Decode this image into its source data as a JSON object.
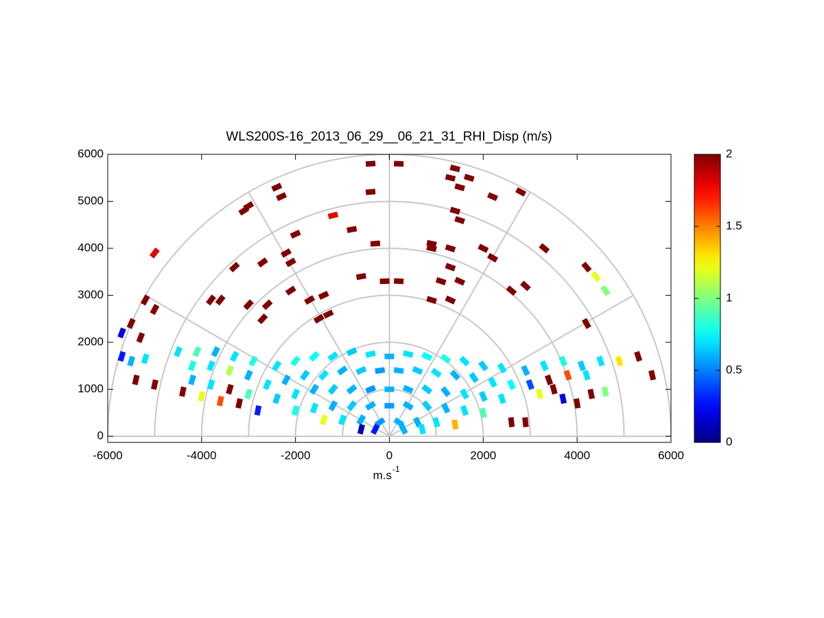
{
  "chart_data": {
    "type": "polar_heatmap",
    "title": "WLS200S-16_2013_06_29__06_21_31_RHI_Disp (m/s)",
    "xlabel": "m.s",
    "xlabel_sup": "-1",
    "xlim": [
      -6000,
      6000
    ],
    "ylim": [
      -130,
      6000
    ],
    "xticks": [
      -6000,
      -4000,
      -2000,
      0,
      2000,
      4000,
      6000
    ],
    "yticks": [
      0,
      1000,
      2000,
      3000,
      4000,
      5000,
      6000
    ],
    "rings": [
      1000,
      2000,
      3000,
      4000,
      5000,
      6000
    ],
    "rays": [
      0,
      30,
      60,
      90,
      120,
      150,
      180
    ],
    "colormap": "jet",
    "clim": [
      0,
      2
    ],
    "cticks": [
      0,
      0.5,
      1,
      1.5,
      2
    ],
    "cells": [
      {
        "x": -2400,
        "y": 1500,
        "value": 0.7
      },
      {
        "x": -2000,
        "y": 1600,
        "value": 0.8
      },
      {
        "x": -1600,
        "y": 1700,
        "value": 0.75
      },
      {
        "x": -1200,
        "y": 1700,
        "value": 0.7
      },
      {
        "x": -800,
        "y": 1800,
        "value": 0.65
      },
      {
        "x": -400,
        "y": 1750,
        "value": 0.7
      },
      {
        "x": 0,
        "y": 1700,
        "value": 0.6
      },
      {
        "x": 400,
        "y": 1750,
        "value": 0.7
      },
      {
        "x": 800,
        "y": 1700,
        "value": 0.75
      },
      {
        "x": 1200,
        "y": 1650,
        "value": 0.8
      },
      {
        "x": 1600,
        "y": 1600,
        "value": 0.7
      },
      {
        "x": 2000,
        "y": 1500,
        "value": 0.65
      },
      {
        "x": 2400,
        "y": 1450,
        "value": 0.7
      },
      {
        "x": -2600,
        "y": 1100,
        "value": 0.7
      },
      {
        "x": -2200,
        "y": 1200,
        "value": 0.6
      },
      {
        "x": -1800,
        "y": 1300,
        "value": 0.65
      },
      {
        "x": -1400,
        "y": 1300,
        "value": 0.7
      },
      {
        "x": -1000,
        "y": 1400,
        "value": 0.6
      },
      {
        "x": -600,
        "y": 1400,
        "value": 0.65
      },
      {
        "x": -200,
        "y": 1400,
        "value": 0.55
      },
      {
        "x": 200,
        "y": 1400,
        "value": 0.6
      },
      {
        "x": 600,
        "y": 1400,
        "value": 0.65
      },
      {
        "x": 1000,
        "y": 1350,
        "value": 0.7
      },
      {
        "x": 1400,
        "y": 1300,
        "value": 0.6
      },
      {
        "x": 1800,
        "y": 1250,
        "value": 0.65
      },
      {
        "x": 2200,
        "y": 1150,
        "value": 0.7
      },
      {
        "x": 2600,
        "y": 1100,
        "value": 0.75
      },
      {
        "x": -2400,
        "y": 800,
        "value": 0.65
      },
      {
        "x": -2000,
        "y": 900,
        "value": 0.7
      },
      {
        "x": -1600,
        "y": 1000,
        "value": 0.6
      },
      {
        "x": -1200,
        "y": 1000,
        "value": 0.65
      },
      {
        "x": -800,
        "y": 1000,
        "value": 0.6
      },
      {
        "x": -400,
        "y": 1000,
        "value": 0.55
      },
      {
        "x": 0,
        "y": 1000,
        "value": 0.6
      },
      {
        "x": 400,
        "y": 1000,
        "value": 0.6
      },
      {
        "x": 800,
        "y": 1000,
        "value": 0.65
      },
      {
        "x": 1200,
        "y": 950,
        "value": 0.6
      },
      {
        "x": 1600,
        "y": 900,
        "value": 0.7
      },
      {
        "x": 2000,
        "y": 850,
        "value": 0.65
      },
      {
        "x": 2400,
        "y": 800,
        "value": 0.7
      },
      {
        "x": -2000,
        "y": 550,
        "value": 0.8
      },
      {
        "x": -1600,
        "y": 600,
        "value": 0.7
      },
      {
        "x": -1200,
        "y": 650,
        "value": 0.6
      },
      {
        "x": -800,
        "y": 650,
        "value": 0.65
      },
      {
        "x": -400,
        "y": 650,
        "value": 0.6
      },
      {
        "x": 0,
        "y": 650,
        "value": 0.55
      },
      {
        "x": 400,
        "y": 650,
        "value": 0.6
      },
      {
        "x": 800,
        "y": 650,
        "value": 0.65
      },
      {
        "x": 1200,
        "y": 600,
        "value": 0.6
      },
      {
        "x": 1600,
        "y": 550,
        "value": 0.7
      },
      {
        "x": 2000,
        "y": 500,
        "value": 0.9
      },
      {
        "x": -1400,
        "y": 350,
        "value": 1.2
      },
      {
        "x": -1000,
        "y": 350,
        "value": 0.7
      },
      {
        "x": -600,
        "y": 350,
        "value": 0.6
      },
      {
        "x": -200,
        "y": 300,
        "value": 0.55
      },
      {
        "x": 200,
        "y": 300,
        "value": 0.6
      },
      {
        "x": 600,
        "y": 300,
        "value": 0.6
      },
      {
        "x": 1000,
        "y": 300,
        "value": 0.7
      },
      {
        "x": 1400,
        "y": 250,
        "value": 1.4
      },
      {
        "x": -600,
        "y": 150,
        "value": 0.1
      },
      {
        "x": -300,
        "y": 150,
        "value": 0.3
      },
      {
        "x": 300,
        "y": 150,
        "value": 0.6
      },
      {
        "x": 700,
        "y": 150,
        "value": 0.7
      },
      {
        "x": -2900,
        "y": 1600,
        "value": 0.8
      },
      {
        "x": -3300,
        "y": 1700,
        "value": 0.7
      },
      {
        "x": -3700,
        "y": 1800,
        "value": 0.6
      },
      {
        "x": -4100,
        "y": 1800,
        "value": 0.9
      },
      {
        "x": -4500,
        "y": 1800,
        "value": 0.7
      },
      {
        "x": -3000,
        "y": 1300,
        "value": 0.6
      },
      {
        "x": -3400,
        "y": 1400,
        "value": 1.1
      },
      {
        "x": -3800,
        "y": 1500,
        "value": 0.7
      },
      {
        "x": -4200,
        "y": 1500,
        "value": 0.8
      },
      {
        "x": -3000,
        "y": 900,
        "value": 0.9
      },
      {
        "x": -3400,
        "y": 1000,
        "value": 2
      },
      {
        "x": -3800,
        "y": 1100,
        "value": 0.7
      },
      {
        "x": -4200,
        "y": 1200,
        "value": 0.6
      },
      {
        "x": -4400,
        "y": 950,
        "value": 2
      },
      {
        "x": -4000,
        "y": 850,
        "value": 1.2
      },
      {
        "x": -3600,
        "y": 750,
        "value": 1.6
      },
      {
        "x": -3200,
        "y": 700,
        "value": 2
      },
      {
        "x": -2800,
        "y": 550,
        "value": 0.3
      },
      {
        "x": -5500,
        "y": 1600,
        "value": 0.6
      },
      {
        "x": -5200,
        "y": 1650,
        "value": 0.7
      },
      {
        "x": -5700,
        "y": 2200,
        "value": 0.2
      },
      {
        "x": -5300,
        "y": 2100,
        "value": 2
      },
      {
        "x": -5500,
        "y": 2400,
        "value": 2
      },
      {
        "x": -5000,
        "y": 1100,
        "value": 2
      },
      {
        "x": -5400,
        "y": 1200,
        "value": 2
      },
      {
        "x": -5700,
        "y": 1700,
        "value": 0.3
      },
      {
        "x": 2900,
        "y": 1400,
        "value": 0.6
      },
      {
        "x": 3300,
        "y": 1500,
        "value": 0.7
      },
      {
        "x": 3700,
        "y": 1600,
        "value": 0.8
      },
      {
        "x": 4100,
        "y": 1500,
        "value": 0.65
      },
      {
        "x": 4500,
        "y": 1600,
        "value": 0.7
      },
      {
        "x": 4900,
        "y": 1600,
        "value": 1.3
      },
      {
        "x": 3000,
        "y": 1100,
        "value": 0.4
      },
      {
        "x": 3400,
        "y": 1200,
        "value": 2
      },
      {
        "x": 3800,
        "y": 1300,
        "value": 1.6
      },
      {
        "x": 4200,
        "y": 1300,
        "value": 0.7
      },
      {
        "x": 3200,
        "y": 900,
        "value": 1.2
      },
      {
        "x": 3500,
        "y": 1000,
        "value": 2
      },
      {
        "x": 3700,
        "y": 800,
        "value": 0.2
      },
      {
        "x": 4000,
        "y": 700,
        "value": 2
      },
      {
        "x": 4300,
        "y": 900,
        "value": 2
      },
      {
        "x": 4600,
        "y": 950,
        "value": 1
      },
      {
        "x": 2600,
        "y": 300,
        "value": 2
      },
      {
        "x": 2900,
        "y": 300,
        "value": 2
      },
      {
        "x": 5300,
        "y": 1700,
        "value": 2
      },
      {
        "x": 5600,
        "y": 1300,
        "value": 2
      },
      {
        "x": -400,
        "y": 5800,
        "value": 2
      },
      {
        "x": 200,
        "y": 5800,
        "value": 2
      },
      {
        "x": 1400,
        "y": 5700,
        "value": 2
      },
      {
        "x": 1700,
        "y": 5500,
        "value": 2
      },
      {
        "x": -2400,
        "y": 5300,
        "value": 2
      },
      {
        "x": -2300,
        "y": 5100,
        "value": 2
      },
      {
        "x": -400,
        "y": 5200,
        "value": 2
      },
      {
        "x": 1300,
        "y": 5500,
        "value": 2
      },
      {
        "x": 1500,
        "y": 5300,
        "value": 2
      },
      {
        "x": 2200,
        "y": 5100,
        "value": 2
      },
      {
        "x": 2800,
        "y": 5200,
        "value": 2
      },
      {
        "x": 1400,
        "y": 4800,
        "value": 2
      },
      {
        "x": 1500,
        "y": 4600,
        "value": 2
      },
      {
        "x": -3000,
        "y": 4900,
        "value": 2
      },
      {
        "x": -3100,
        "y": 4800,
        "value": 2
      },
      {
        "x": -1200,
        "y": 4700,
        "value": 1.8
      },
      {
        "x": -800,
        "y": 4400,
        "value": 2
      },
      {
        "x": -2000,
        "y": 4300,
        "value": 2
      },
      {
        "x": -2200,
        "y": 3900,
        "value": 2
      },
      {
        "x": -2100,
        "y": 3700,
        "value": 2
      },
      {
        "x": -2700,
        "y": 3700,
        "value": 2
      },
      {
        "x": -3300,
        "y": 3600,
        "value": 2
      },
      {
        "x": -5000,
        "y": 3900,
        "value": 1.8
      },
      {
        "x": -300,
        "y": 4100,
        "value": 2
      },
      {
        "x": 900,
        "y": 4100,
        "value": 2
      },
      {
        "x": 900,
        "y": 4000,
        "value": 2
      },
      {
        "x": 1300,
        "y": 4000,
        "value": 2
      },
      {
        "x": 2000,
        "y": 4000,
        "value": 2
      },
      {
        "x": 3300,
        "y": 4000,
        "value": 2
      },
      {
        "x": 2200,
        "y": 3800,
        "value": 2
      },
      {
        "x": 1300,
        "y": 3600,
        "value": 2
      },
      {
        "x": 1100,
        "y": 3300,
        "value": 2
      },
      {
        "x": -600,
        "y": 3400,
        "value": 2
      },
      {
        "x": -100,
        "y": 3300,
        "value": 2
      },
      {
        "x": 200,
        "y": 3300,
        "value": 2
      },
      {
        "x": 1500,
        "y": 3300,
        "value": 2
      },
      {
        "x": 2600,
        "y": 3100,
        "value": 2
      },
      {
        "x": 4200,
        "y": 3600,
        "value": 2
      },
      {
        "x": 4400,
        "y": 3400,
        "value": 1.2
      },
      {
        "x": 4600,
        "y": 3100,
        "value": 1
      },
      {
        "x": -2100,
        "y": 3100,
        "value": 2
      },
      {
        "x": -1400,
        "y": 3000,
        "value": 2
      },
      {
        "x": -1700,
        "y": 2900,
        "value": 2
      },
      {
        "x": -2600,
        "y": 2800,
        "value": 2
      },
      {
        "x": -3000,
        "y": 2800,
        "value": 2
      },
      {
        "x": -3600,
        "y": 2900,
        "value": 2
      },
      {
        "x": -1300,
        "y": 2600,
        "value": 2
      },
      {
        "x": -1500,
        "y": 2500,
        "value": 2
      },
      {
        "x": 900,
        "y": 2900,
        "value": 2
      },
      {
        "x": 1300,
        "y": 2900,
        "value": 2
      },
      {
        "x": 2900,
        "y": 3200,
        "value": 2
      },
      {
        "x": 4200,
        "y": 2400,
        "value": 2
      },
      {
        "x": -2700,
        "y": 2500,
        "value": 2
      },
      {
        "x": -3800,
        "y": 2900,
        "value": 2
      },
      {
        "x": -5000,
        "y": 2700,
        "value": 2
      },
      {
        "x": -5200,
        "y": 2900,
        "value": 2
      }
    ]
  }
}
